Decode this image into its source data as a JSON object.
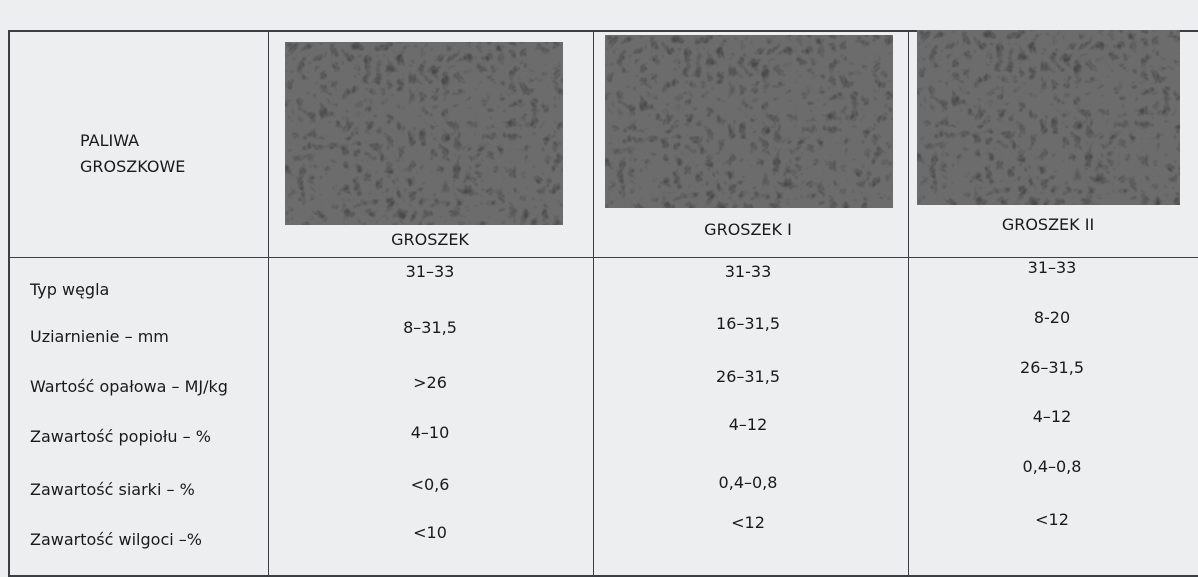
{
  "table": {
    "header": {
      "title": "PALIWA GROSZKOWE",
      "columns": [
        "GROSZEK",
        "GROSZEK I",
        "GROSZEK II"
      ]
    },
    "rows": [
      {
        "label": "Typ węgla",
        "values": [
          "31–33",
          "31-33",
          "31–33"
        ]
      },
      {
        "label": "Uziarnienie – mm",
        "values": [
          "8–31,5",
          "16–31,5",
          "8-20"
        ]
      },
      {
        "label": "Wartość opałowa – MJ/kg",
        "values": [
          ">26",
          "26–31,5",
          "26–31,5"
        ]
      },
      {
        "label": "Zawartość popiołu – %",
        "values": [
          "4–10",
          "4–12",
          "4–12"
        ]
      },
      {
        "label": "Zawartość siarki – %",
        "values": [
          "<0,6",
          "0,4–0,8",
          "0,4–0,8"
        ]
      },
      {
        "label": "Zawartość wilgoci –%",
        "values": [
          "<10",
          "<12",
          "<12"
        ]
      }
    ]
  }
}
